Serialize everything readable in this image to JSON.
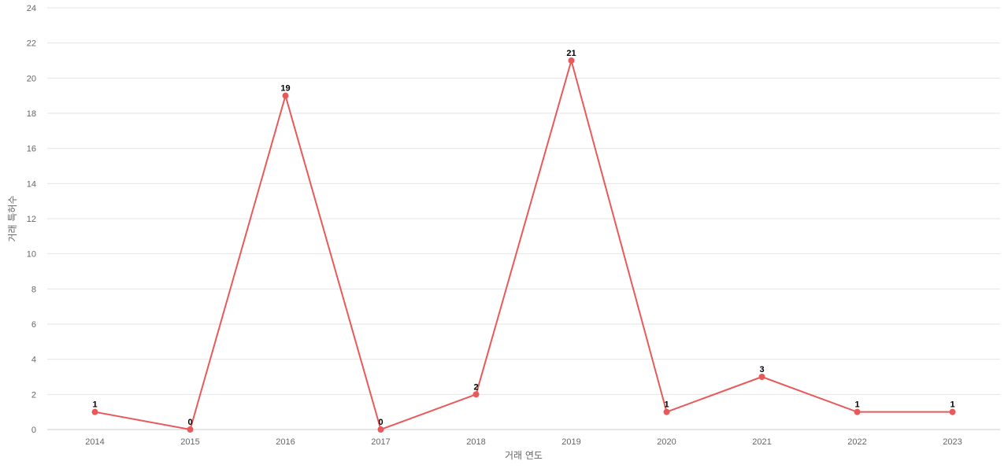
{
  "chart_data": {
    "type": "line",
    "title": "",
    "xlabel": "거래 연도",
    "ylabel": "거래 특허수",
    "categories": [
      "2014",
      "2015",
      "2016",
      "2017",
      "2018",
      "2019",
      "2020",
      "2021",
      "2022",
      "2023"
    ],
    "series": [
      {
        "values": [
          1,
          0,
          19,
          0,
          2,
          21,
          1,
          3,
          1,
          1
        ]
      }
    ],
    "ylim": [
      0,
      24
    ],
    "yticks": [
      0,
      2,
      4,
      6,
      8,
      10,
      12,
      14,
      16,
      18,
      20,
      22,
      24
    ],
    "grid": true,
    "legend": "none",
    "data_labels": true,
    "line_color": "#e8595a"
  }
}
